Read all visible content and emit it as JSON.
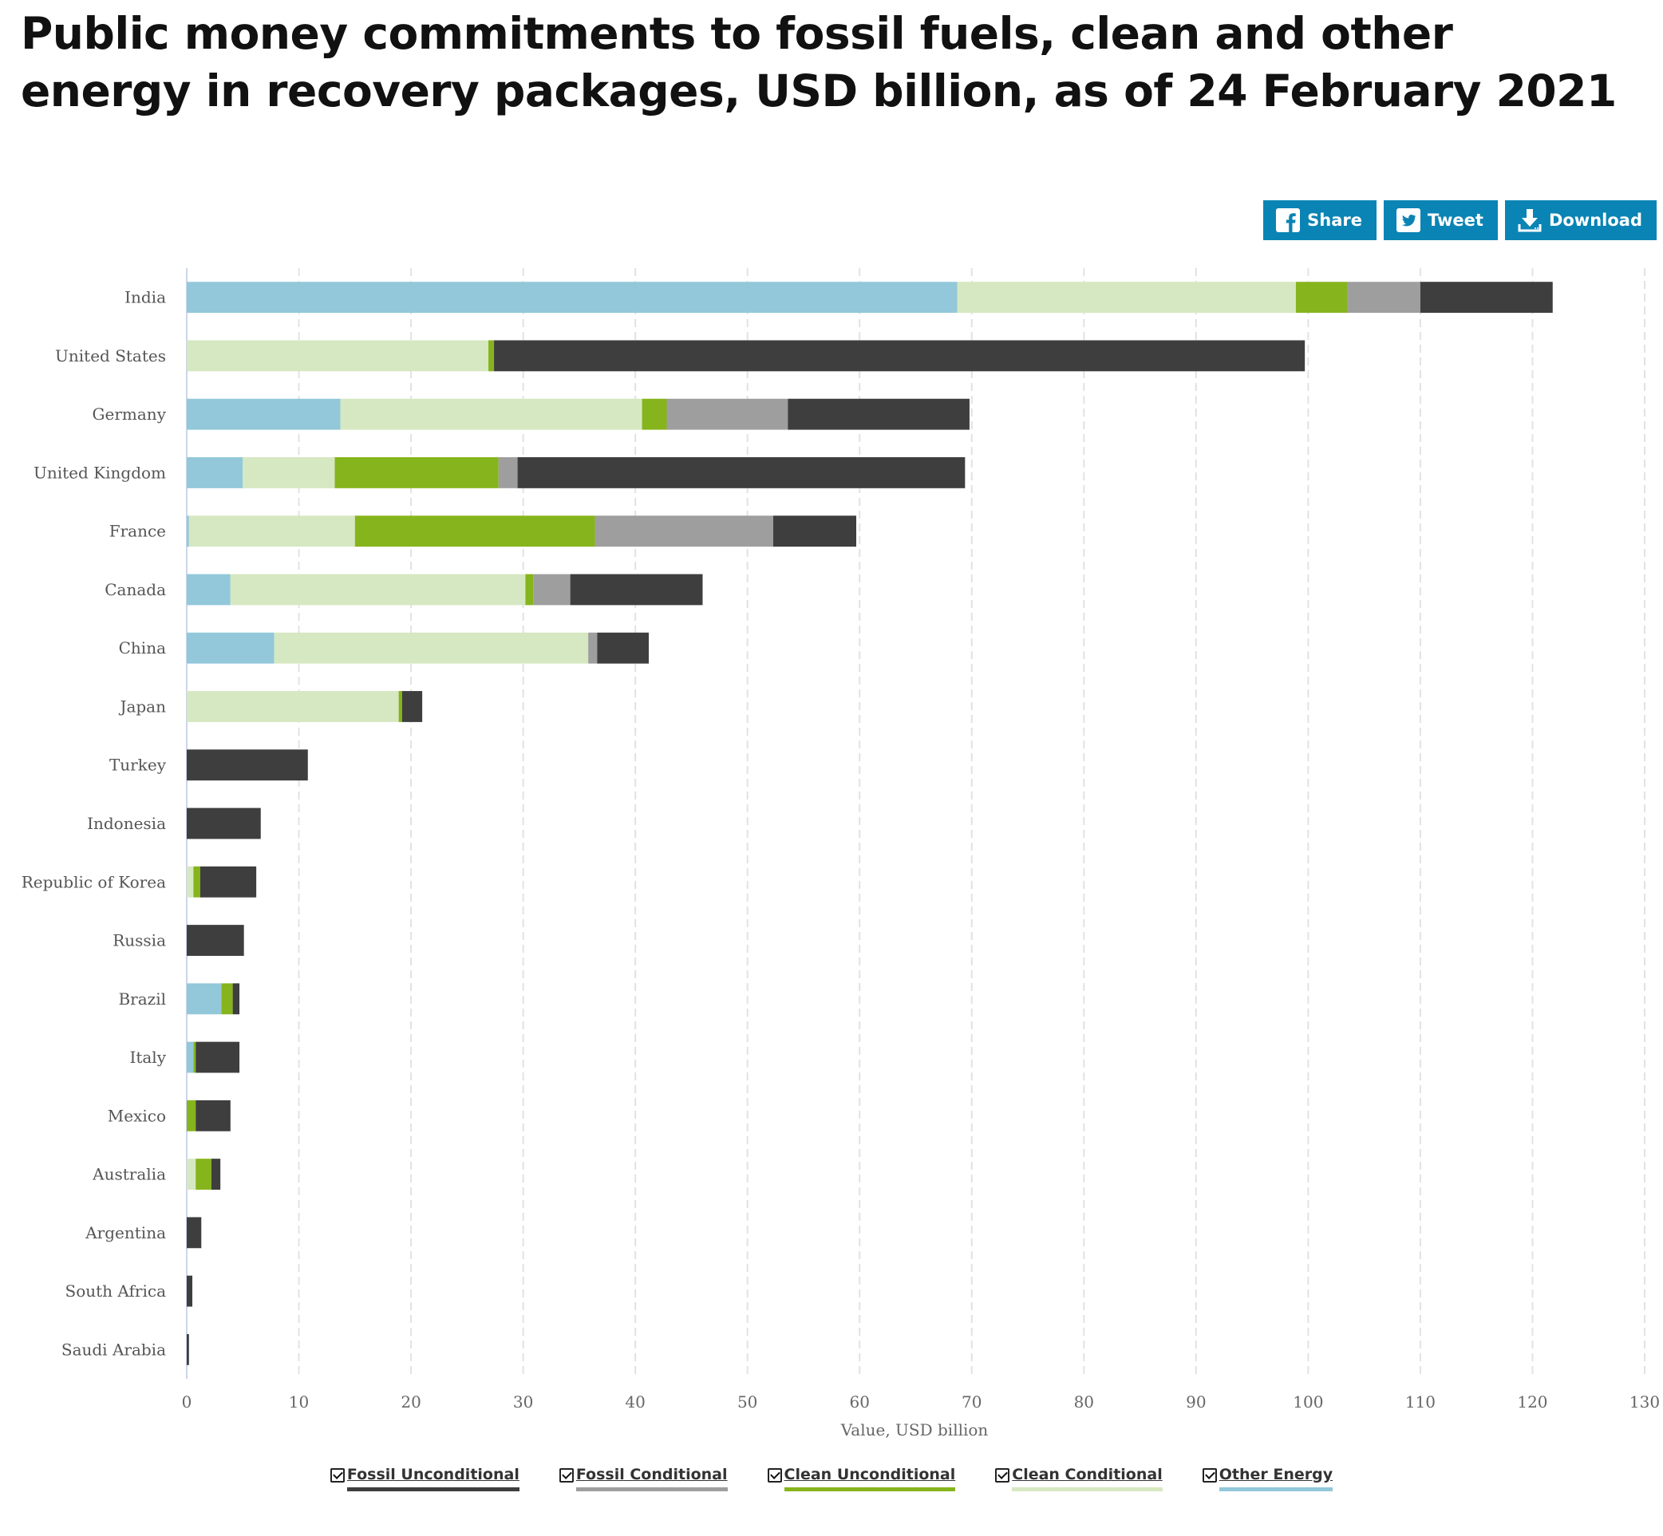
{
  "title": "Public money commitments to fossil fuels, clean and other energy in recovery packages, USD billion, as of 24 February 2021",
  "buttons": {
    "share": "Share",
    "tweet": "Tweet",
    "download": "Download"
  },
  "chart_data": {
    "type": "bar",
    "orientation": "horizontal",
    "stacked": true,
    "title": "Public money commitments to fossil fuels, clean and other energy in recovery packages, USD billion, as of 24 February 2021",
    "xlabel": "Value, USD billion",
    "ylabel": "",
    "xlim": [
      0,
      130
    ],
    "xticks": [
      0,
      10,
      20,
      30,
      40,
      50,
      60,
      70,
      80,
      90,
      100,
      110,
      120,
      130
    ],
    "grid": true,
    "legend_position": "bottom",
    "categories": [
      "India",
      "United States",
      "Germany",
      "United Kingdom",
      "France",
      "Canada",
      "China",
      "Japan",
      "Turkey",
      "Indonesia",
      "Republic of Korea",
      "Russia",
      "Brazil",
      "Italy",
      "Mexico",
      "Australia",
      "Argentina",
      "South Africa",
      "Saudi Arabia"
    ],
    "series": [
      {
        "name": "Other Energy",
        "color": "#92c8d9",
        "values": [
          68.7,
          0,
          13.7,
          5.0,
          0.2,
          3.9,
          7.8,
          0,
          0,
          0,
          0,
          0,
          3.1,
          0.6,
          0,
          0,
          0,
          0,
          0
        ]
      },
      {
        "name": "Clean Conditional",
        "color": "#d6e8c1",
        "values": [
          30.2,
          26.9,
          26.9,
          8.2,
          14.8,
          26.3,
          28.0,
          18.9,
          0,
          0,
          0.6,
          0,
          0,
          0,
          0,
          0.8,
          0,
          0,
          0
        ]
      },
      {
        "name": "Clean Unconditional",
        "color": "#86b41c",
        "values": [
          4.6,
          0.5,
          2.2,
          14.6,
          21.4,
          0.7,
          0,
          0.3,
          0,
          0,
          0.6,
          0,
          1.0,
          0.2,
          0.8,
          1.4,
          0,
          0,
          0
        ]
      },
      {
        "name": "Fossil Conditional",
        "color": "#9e9e9e",
        "values": [
          6.5,
          0,
          10.8,
          1.7,
          15.9,
          3.3,
          0.8,
          0,
          0,
          0,
          0,
          0,
          0,
          0,
          0,
          0,
          0,
          0,
          0
        ]
      },
      {
        "name": "Fossil Unconditional",
        "color": "#3e3e3e",
        "values": [
          11.8,
          72.3,
          16.2,
          39.9,
          7.4,
          11.8,
          4.6,
          1.8,
          10.8,
          6.6,
          5.0,
          5.1,
          0.6,
          3.9,
          3.1,
          0.8,
          1.3,
          0.5,
          0.2
        ]
      }
    ]
  },
  "legend": [
    {
      "label": "Fossil Unconditional",
      "color": "#3e3e3e"
    },
    {
      "label": "Fossil Conditional",
      "color": "#9e9e9e"
    },
    {
      "label": "Clean Unconditional",
      "color": "#86b41c"
    },
    {
      "label": "Clean Conditional",
      "color": "#d6e8c1"
    },
    {
      "label": "Other Energy",
      "color": "#92c8d9"
    }
  ]
}
